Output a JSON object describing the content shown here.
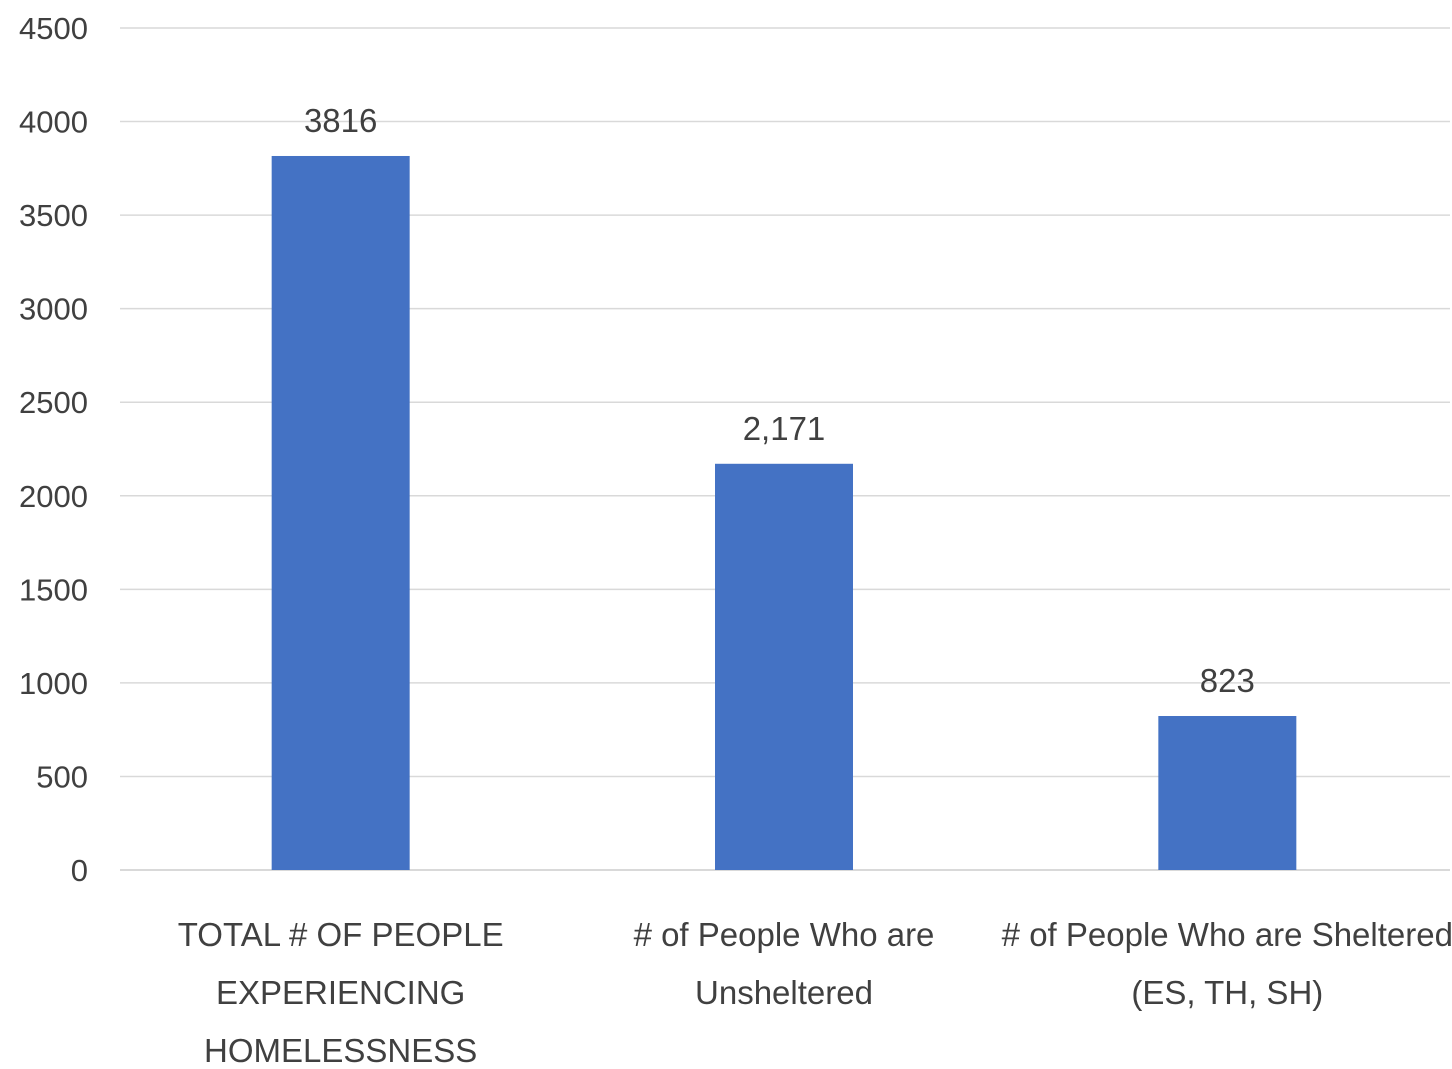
{
  "chart_data": {
    "type": "bar",
    "title": "",
    "xlabel": "",
    "ylabel": "",
    "categories": [
      [
        "TOTAL # OF PEOPLE",
        "EXPERIENCING",
        "HOMELESSNESS"
      ],
      [
        "# of People Who are",
        "Unsheltered"
      ],
      [
        "# of People Who are Sheltered",
        "(ES, TH, SH)"
      ]
    ],
    "values": [
      3816,
      2171,
      823
    ],
    "data_labels": [
      "3816",
      "2,171",
      "823"
    ],
    "ylim": [
      0,
      4500
    ],
    "yticks": [
      0,
      500,
      1000,
      1500,
      2000,
      2500,
      3000,
      3500,
      4000,
      4500
    ],
    "grid": true,
    "legend": "none",
    "colors": {
      "bar": "#4472C4",
      "grid": "#d9d9d9",
      "text": "#404040"
    }
  }
}
